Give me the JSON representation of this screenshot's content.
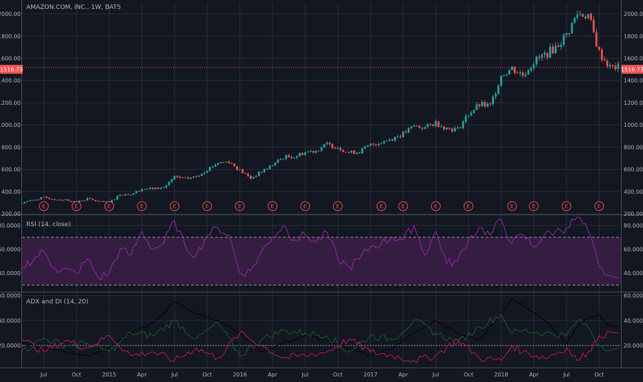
{
  "colors": {
    "background": "#131722",
    "grid": "#2a2e39",
    "separator": "#4a4e59",
    "text": "#b2b5be",
    "up": "#26a69a",
    "down": "#ef5350",
    "rsi": "#9c27b0",
    "rsi_band": "#3b1f47",
    "adx": "#000000",
    "plus_di": "#1b5e20",
    "minus_di": "#c2185b",
    "earnings": "#ef5350"
  },
  "header": {
    "title": "AMAZON.COM, INC., 1W, BATS"
  },
  "price_pane": {
    "last_price": "1516.73",
    "yticks": [
      "2000.00",
      "1800.00",
      "1600.00",
      "1400.00",
      "1200.00",
      "1000.00",
      "800.00",
      "600.00",
      "400.00",
      "200.00"
    ],
    "earnings_label": "E"
  },
  "rsi_pane": {
    "title": "RSI (14, close)",
    "yticks": [
      "80.0000",
      "60.0000",
      "40.0000"
    ]
  },
  "adx_pane": {
    "title": "ADX and DI (14, 20)",
    "yticks": [
      "60.0000",
      "40.0000",
      "20.0000"
    ]
  },
  "x_axis": {
    "labels": [
      "Jul",
      "Oct",
      "2015",
      "Apr",
      "Jul",
      "Oct",
      "2016",
      "Apr",
      "Jul",
      "Oct",
      "2017",
      "Apr",
      "Jul",
      "Oct",
      "2018",
      "Apr",
      "Jul",
      "Oct"
    ]
  },
  "chart_data": [
    {
      "type": "candlestick",
      "title": "AMAZON.COM, INC., 1W, BATS",
      "ylim": [
        200,
        2100
      ],
      "x_start": "2014-05",
      "x_end": "2018-12",
      "anchors": [
        [
          "2014-05",
          300
        ],
        [
          "2014-06",
          325
        ],
        [
          "2014-07",
          345
        ],
        [
          "2014-08",
          330
        ],
        [
          "2014-09",
          325
        ],
        [
          "2014-10",
          305
        ],
        [
          "2014-11",
          335
        ],
        [
          "2014-12",
          310
        ],
        [
          "2015-01",
          300
        ],
        [
          "2015-02",
          375
        ],
        [
          "2015-03",
          375
        ],
        [
          "2015-04",
          425
        ],
        [
          "2015-05",
          425
        ],
        [
          "2015-06",
          435
        ],
        [
          "2015-07",
          530
        ],
        [
          "2015-08",
          515
        ],
        [
          "2015-09",
          535
        ],
        [
          "2015-10",
          600
        ],
        [
          "2015-11",
          660
        ],
        [
          "2015-12",
          670
        ],
        [
          "2016-01",
          590
        ],
        [
          "2016-02",
          520
        ],
        [
          "2016-03",
          580
        ],
        [
          "2016-04",
          640
        ],
        [
          "2016-05",
          710
        ],
        [
          "2016-06",
          715
        ],
        [
          "2016-07",
          755
        ],
        [
          "2016-08",
          770
        ],
        [
          "2016-09",
          825
        ],
        [
          "2016-10",
          800
        ],
        [
          "2016-11",
          750
        ],
        [
          "2016-12",
          760
        ],
        [
          "2017-01",
          820
        ],
        [
          "2017-02",
          845
        ],
        [
          "2017-03",
          880
        ],
        [
          "2017-04",
          920
        ],
        [
          "2017-05",
          990
        ],
        [
          "2017-06",
          975
        ],
        [
          "2017-07",
          1020
        ],
        [
          "2017-08",
          970
        ],
        [
          "2017-09",
          960
        ],
        [
          "2017-10",
          1100
        ],
        [
          "2017-11",
          1180
        ],
        [
          "2017-12",
          1170
        ],
        [
          "2018-01",
          1450
        ],
        [
          "2018-02",
          1510
        ],
        [
          "2018-03",
          1450
        ],
        [
          "2018-04",
          1570
        ],
        [
          "2018-05",
          1630
        ],
        [
          "2018-06",
          1700
        ],
        [
          "2018-07",
          1810
        ],
        [
          "2018-08",
          2000
        ],
        [
          "2018-09",
          1990
        ],
        [
          "2018-10",
          1650
        ],
        [
          "2018-11",
          1516.73
        ]
      ],
      "last_price": 1516.73,
      "earnings_dates": [
        "2014-07",
        "2014-10",
        "2015-01",
        "2015-04",
        "2015-07",
        "2015-10",
        "2016-01",
        "2016-04",
        "2016-07",
        "2016-10",
        "2017-02",
        "2017-04",
        "2017-07",
        "2017-10",
        "2018-02",
        "2018-04",
        "2018-07",
        "2018-10"
      ]
    },
    {
      "type": "line",
      "title": "RSI (14, close)",
      "ylim": [
        25,
        88
      ],
      "bands": [
        30,
        70
      ],
      "series": [
        {
          "values": [
            [
              "2014-05",
              45
            ],
            [
              "2014-07",
              58
            ],
            [
              "2014-08",
              44
            ],
            [
              "2014-10",
              40
            ],
            [
              "2014-11",
              52
            ],
            [
              "2014-12",
              36
            ],
            [
              "2015-01",
              40
            ],
            [
              "2015-02",
              60
            ],
            [
              "2015-03",
              55
            ],
            [
              "2015-04",
              75
            ],
            [
              "2015-05",
              60
            ],
            [
              "2015-06",
              65
            ],
            [
              "2015-07",
              84
            ],
            [
              "2015-08",
              62
            ],
            [
              "2015-09",
              55
            ],
            [
              "2015-10",
              72
            ],
            [
              "2015-11",
              78
            ],
            [
              "2015-12",
              72
            ],
            [
              "2016-01",
              40
            ],
            [
              "2016-02",
              42
            ],
            [
              "2016-03",
              58
            ],
            [
              "2016-04",
              70
            ],
            [
              "2016-05",
              80
            ],
            [
              "2016-06",
              68
            ],
            [
              "2016-07",
              72
            ],
            [
              "2016-08",
              66
            ],
            [
              "2016-09",
              74
            ],
            [
              "2016-10",
              52
            ],
            [
              "2016-11",
              45
            ],
            [
              "2016-12",
              52
            ],
            [
              "2017-01",
              62
            ],
            [
              "2017-02",
              65
            ],
            [
              "2017-03",
              70
            ],
            [
              "2017-04",
              68
            ],
            [
              "2017-05",
              80
            ],
            [
              "2017-06",
              55
            ],
            [
              "2017-07",
              75
            ],
            [
              "2017-08",
              48
            ],
            [
              "2017-09",
              50
            ],
            [
              "2017-10",
              68
            ],
            [
              "2017-11",
              78
            ],
            [
              "2017-12",
              72
            ],
            [
              "2018-01",
              85
            ],
            [
              "2018-02",
              65
            ],
            [
              "2018-03",
              72
            ],
            [
              "2018-04",
              62
            ],
            [
              "2018-05",
              72
            ],
            [
              "2018-06",
              75
            ],
            [
              "2018-07",
              78
            ],
            [
              "2018-08",
              87
            ],
            [
              "2018-09",
              75
            ],
            [
              "2018-10",
              45
            ],
            [
              "2018-11",
              36
            ]
          ]
        }
      ]
    },
    {
      "type": "line",
      "title": "ADX and DI (14, 20)",
      "ylim": [
        3,
        62
      ],
      "threshold": 20,
      "series": [
        {
          "values": [
            [
              "2014-05",
              22
            ],
            [
              "2014-07",
              18
            ],
            [
              "2014-09",
              15
            ],
            [
              "2014-11",
              12
            ],
            [
              "2015-01",
              18
            ],
            [
              "2015-03",
              30
            ],
            [
              "2015-05",
              38
            ],
            [
              "2015-07",
              55
            ],
            [
              "2015-09",
              45
            ],
            [
              "2015-11",
              40
            ],
            [
              "2016-01",
              30
            ],
            [
              "2016-03",
              15
            ],
            [
              "2016-05",
              22
            ],
            [
              "2016-07",
              28
            ],
            [
              "2016-09",
              24
            ],
            [
              "2016-11",
              18
            ],
            [
              "2017-01",
              12
            ],
            [
              "2017-03",
              18
            ],
            [
              "2017-05",
              30
            ],
            [
              "2017-07",
              40
            ],
            [
              "2017-09",
              30
            ],
            [
              "2017-11",
              25
            ],
            [
              "2018-01",
              45
            ],
            [
              "2018-02",
              58
            ],
            [
              "2018-03",
              52
            ],
            [
              "2018-05",
              40
            ],
            [
              "2018-07",
              22
            ],
            [
              "2018-08",
              35
            ],
            [
              "2018-09",
              42
            ],
            [
              "2018-10",
              45
            ],
            [
              "2018-11",
              35
            ]
          ]
        },
        {
          "values": [
            [
              "2014-05",
              15
            ],
            [
              "2014-07",
              26
            ],
            [
              "2014-09",
              20
            ],
            [
              "2014-11",
              22
            ],
            [
              "2015-01",
              15
            ],
            [
              "2015-03",
              30
            ],
            [
              "2015-05",
              28
            ],
            [
              "2015-07",
              40
            ],
            [
              "2015-09",
              25
            ],
            [
              "2015-11",
              38
            ],
            [
              "2016-01",
              12
            ],
            [
              "2016-03",
              25
            ],
            [
              "2016-05",
              32
            ],
            [
              "2016-07",
              30
            ],
            [
              "2016-09",
              28
            ],
            [
              "2016-11",
              15
            ],
            [
              "2017-01",
              28
            ],
            [
              "2017-03",
              25
            ],
            [
              "2017-05",
              40
            ],
            [
              "2017-07",
              30
            ],
            [
              "2017-09",
              22
            ],
            [
              "2017-11",
              35
            ],
            [
              "2018-01",
              45
            ],
            [
              "2018-02",
              30
            ],
            [
              "2018-03",
              32
            ],
            [
              "2018-05",
              30
            ],
            [
              "2018-07",
              28
            ],
            [
              "2018-08",
              40
            ],
            [
              "2018-09",
              35
            ],
            [
              "2018-10",
              20
            ],
            [
              "2018-11",
              18
            ]
          ]
        },
        {
          "values": [
            [
              "2014-05",
              25
            ],
            [
              "2014-07",
              15
            ],
            [
              "2014-09",
              24
            ],
            [
              "2014-11",
              18
            ],
            [
              "2015-01",
              28
            ],
            [
              "2015-03",
              12
            ],
            [
              "2015-05",
              15
            ],
            [
              "2015-07",
              8
            ],
            [
              "2015-09",
              18
            ],
            [
              "2015-11",
              10
            ],
            [
              "2016-01",
              30
            ],
            [
              "2016-03",
              20
            ],
            [
              "2016-05",
              10
            ],
            [
              "2016-07",
              12
            ],
            [
              "2016-09",
              15
            ],
            [
              "2016-11",
              25
            ],
            [
              "2017-01",
              15
            ],
            [
              "2017-03",
              12
            ],
            [
              "2017-05",
              8
            ],
            [
              "2017-07",
              12
            ],
            [
              "2017-09",
              25
            ],
            [
              "2017-11",
              10
            ],
            [
              "2018-01",
              8
            ],
            [
              "2018-02",
              20
            ],
            [
              "2018-03",
              15
            ],
            [
              "2018-05",
              10
            ],
            [
              "2018-07",
              18
            ],
            [
              "2018-08",
              8
            ],
            [
              "2018-09",
              15
            ],
            [
              "2018-10",
              28
            ],
            [
              "2018-11",
              30
            ]
          ]
        }
      ]
    }
  ]
}
